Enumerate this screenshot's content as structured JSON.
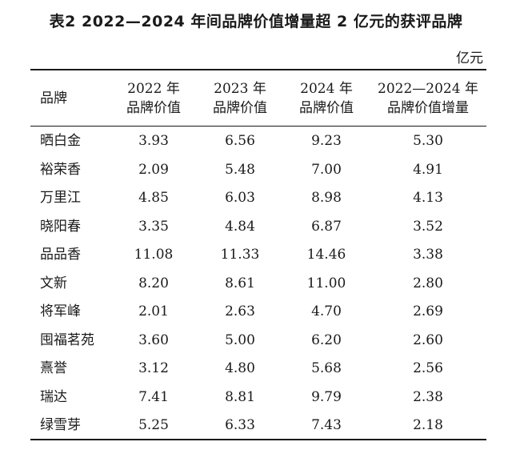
{
  "title": "表2  2022—2024 年间品牌价值增量超 2 亿元的获评品牌",
  "unit": "亿元",
  "table": {
    "headers": [
      {
        "line1": "品牌",
        "line2": ""
      },
      {
        "line1": "2022 年",
        "line2": "品牌价值"
      },
      {
        "line1": "2023 年",
        "line2": "品牌价值"
      },
      {
        "line1": "2024 年",
        "line2": "品牌价值"
      },
      {
        "line1": "2022—2024 年",
        "line2": "品牌价值增量"
      }
    ],
    "rows": [
      [
        "晒白金",
        "3.93",
        "6.56",
        "9.23",
        "5.30"
      ],
      [
        "裕荣香",
        "2.09",
        "5.48",
        "7.00",
        "4.91"
      ],
      [
        "万里江",
        "4.85",
        "6.03",
        "8.98",
        "4.13"
      ],
      [
        "晓阳春",
        "3.35",
        "4.84",
        "6.87",
        "3.52"
      ],
      [
        "品品香",
        "11.08",
        "11.33",
        "14.46",
        "3.38"
      ],
      [
        "文新",
        "8.20",
        "8.61",
        "11.00",
        "2.80"
      ],
      [
        "将军峰",
        "2.01",
        "2.63",
        "4.70",
        "2.69"
      ],
      [
        "囤福茗苑",
        "3.60",
        "5.00",
        "6.20",
        "2.60"
      ],
      [
        "熹誉",
        "3.12",
        "4.80",
        "5.68",
        "2.56"
      ],
      [
        "瑞达",
        "7.41",
        "8.81",
        "9.79",
        "2.38"
      ],
      [
        "绿雪芽",
        "5.25",
        "6.33",
        "7.43",
        "2.18"
      ]
    ]
  }
}
